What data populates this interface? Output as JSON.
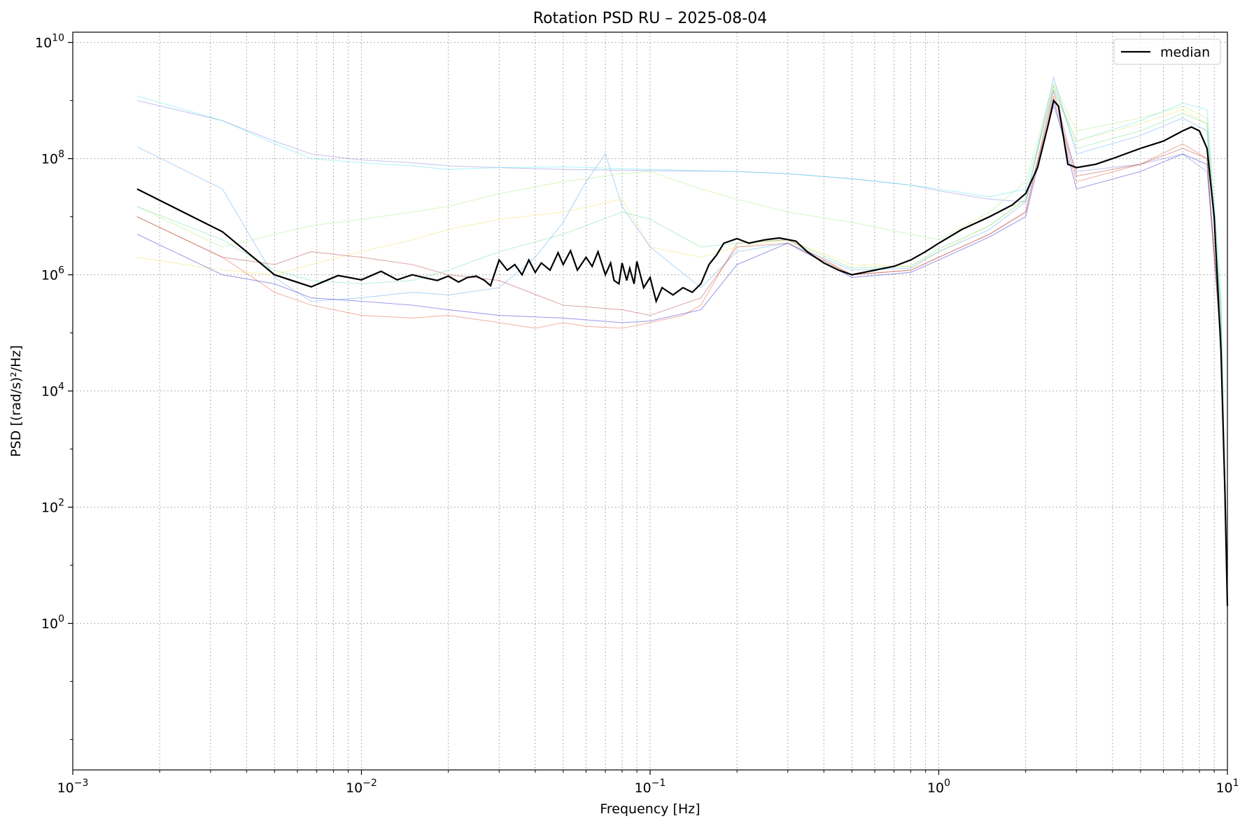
{
  "chart_data": {
    "type": "line",
    "title": "Rotation PSD RU – 2025-08-04",
    "xlabel": "Frequency [Hz]",
    "ylabel": "PSD [(rad/s)²/Hz]",
    "xscale": "log",
    "yscale": "log",
    "xlim": [
      0.001,
      10
    ],
    "ylim": [
      0.003,
      15000000000
    ],
    "grid": true,
    "legend": {
      "position": "top-right",
      "entries": [
        "median"
      ]
    },
    "x_ticks": [
      {
        "value": 0.001,
        "base": "10",
        "exp": "−3"
      },
      {
        "value": 0.01,
        "base": "10",
        "exp": "−2"
      },
      {
        "value": 0.1,
        "base": "10",
        "exp": "−1"
      },
      {
        "value": 1,
        "base": "10",
        "exp": "0"
      },
      {
        "value": 10,
        "base": "10",
        "exp": "1"
      }
    ],
    "y_ticks": [
      {
        "value": 1,
        "base": "10",
        "exp": "0"
      },
      {
        "value": 100,
        "base": "10",
        "exp": "2"
      },
      {
        "value": 10000,
        "base": "10",
        "exp": "4"
      },
      {
        "value": 1000000,
        "base": "10",
        "exp": "6"
      },
      {
        "value": 100000000,
        "base": "10",
        "exp": "8"
      },
      {
        "value": 10000000000,
        "base": "10",
        "exp": "10"
      }
    ],
    "series": [
      {
        "name": "median",
        "color": "#000000",
        "x": [
          0.00167,
          0.0033,
          0.005,
          0.0067,
          0.0083,
          0.01,
          0.0117,
          0.0133,
          0.015,
          0.0167,
          0.0183,
          0.02,
          0.0217,
          0.0233,
          0.025,
          0.0267,
          0.028,
          0.03,
          0.032,
          0.034,
          0.036,
          0.038,
          0.04,
          0.042,
          0.045,
          0.048,
          0.05,
          0.053,
          0.056,
          0.06,
          0.063,
          0.066,
          0.07,
          0.073,
          0.075,
          0.078,
          0.08,
          0.083,
          0.085,
          0.088,
          0.09,
          0.095,
          0.1,
          0.105,
          0.11,
          0.12,
          0.13,
          0.14,
          0.15,
          0.16,
          0.17,
          0.18,
          0.2,
          0.22,
          0.25,
          0.28,
          0.32,
          0.35,
          0.4,
          0.45,
          0.5,
          0.55,
          0.6,
          0.7,
          0.8,
          0.9,
          1.0,
          1.2,
          1.5,
          1.8,
          2.0,
          2.2,
          2.4,
          2.5,
          2.6,
          2.7,
          2.8,
          3.0,
          3.5,
          4.0,
          5.0,
          6.0,
          7.0,
          7.5,
          8.0,
          8.5,
          9.0,
          9.5,
          9.8,
          10.0
        ],
        "y": [
          30000000,
          5500000,
          1000000,
          620000,
          970000,
          820000,
          1150000,
          820000,
          1000000,
          880000,
          800000,
          950000,
          750000,
          900000,
          950000,
          800000,
          650000,
          1800000,
          1200000,
          1500000,
          1000000,
          1800000,
          1100000,
          1600000,
          1200000,
          2400000,
          1500000,
          2600000,
          1200000,
          2000000,
          1400000,
          2500000,
          1000000,
          1600000,
          800000,
          700000,
          1600000,
          800000,
          1300000,
          700000,
          1700000,
          600000,
          900000,
          350000,
          600000,
          450000,
          600000,
          500000,
          700000,
          1500000,
          2200000,
          3500000,
          4200000,
          3500000,
          4000000,
          4300000,
          3800000,
          2500000,
          1600000,
          1200000,
          1000000,
          1100000,
          1200000,
          1400000,
          1800000,
          2500000,
          3500000,
          6000000,
          10000000,
          16000000,
          25000000,
          70000000,
          400000000,
          1000000000,
          800000000,
          250000000,
          80000000,
          70000000,
          80000000,
          100000000,
          150000000,
          200000000,
          300000000,
          350000000,
          300000000,
          150000000,
          10000000,
          50000,
          200,
          2
        ]
      },
      {
        "name": "",
        "color": "#7f7fdd",
        "x": [
          0.00167,
          0.0033,
          0.005,
          0.0067,
          0.01,
          0.015,
          0.02,
          0.03,
          0.05,
          0.1,
          0.2,
          0.3,
          0.5,
          0.8,
          1.0,
          1.5,
          2.0,
          2.5,
          3.0,
          5.0,
          7.0,
          8.5,
          9.5,
          10.0
        ],
        "y": [
          1000000000,
          450000000,
          200000000,
          120000000,
          95000000,
          85000000,
          75000000,
          70000000,
          65000000,
          62000000,
          60000000,
          55000000,
          45000000,
          35000000,
          28000000,
          20000000,
          18000000,
          800000000,
          60000000,
          80000000,
          120000000,
          60000000,
          100000,
          2
        ]
      },
      {
        "name": "",
        "color": "#4fe6f0",
        "x": [
          0.00167,
          0.0033,
          0.005,
          0.0067,
          0.01,
          0.015,
          0.02,
          0.03,
          0.05,
          0.1,
          0.2,
          0.3,
          0.5,
          0.8,
          1.0,
          1.5,
          2.0,
          2.5,
          3.0,
          5.0,
          7.0,
          8.5,
          9.5,
          10.0
        ],
        "y": [
          1200000000,
          450000000,
          180000000,
          100000000,
          85000000,
          75000000,
          65000000,
          70000000,
          72000000,
          65000000,
          60000000,
          55000000,
          45000000,
          35000000,
          30000000,
          22000000,
          30000000,
          1500000000,
          200000000,
          450000000,
          900000000,
          700000000,
          500000,
          2
        ]
      },
      {
        "name": "",
        "color": "#a8f07c",
        "x": [
          0.00167,
          0.0033,
          0.005,
          0.0067,
          0.01,
          0.015,
          0.02,
          0.03,
          0.05,
          0.08,
          0.1,
          0.15,
          0.2,
          0.3,
          0.5,
          0.8,
          1.0,
          1.5,
          2.0,
          2.5,
          3.0,
          5.0,
          7.0,
          8.5,
          9.5,
          10.0
        ],
        "y": [
          15000000,
          3000000,
          5000000,
          7000000,
          9000000,
          12000000,
          15000000,
          25000000,
          40000000,
          55000000,
          60000000,
          30000000,
          20000000,
          12000000,
          8000000,
          5000000,
          4000000,
          12000000,
          40000000,
          2000000000,
          300000000,
          500000000,
          800000000,
          500000000,
          300000,
          2
        ]
      },
      {
        "name": "",
        "color": "#f5e15a",
        "x": [
          0.00167,
          0.0033,
          0.005,
          0.0067,
          0.01,
          0.015,
          0.02,
          0.03,
          0.05,
          0.08,
          0.1,
          0.15,
          0.2,
          0.3,
          0.5,
          0.8,
          1.0,
          1.5,
          2.0,
          2.5,
          3.0,
          5.0,
          7.0,
          8.5,
          9.5,
          10.0
        ],
        "y": [
          2000000,
          1200000,
          1000000,
          1500000,
          2500000,
          4000000,
          6000000,
          9000000,
          12000000,
          20000000,
          3000000,
          2000000,
          3000000,
          4000000,
          1500000,
          1400000,
          2500000,
          7000000,
          20000000,
          1800000000,
          200000000,
          400000000,
          700000000,
          400000000,
          200000,
          2
        ]
      },
      {
        "name": "",
        "color": "#5aa8f2",
        "x": [
          0.00167,
          0.0033,
          0.005,
          0.0067,
          0.01,
          0.015,
          0.02,
          0.03,
          0.04,
          0.05,
          0.06,
          0.07,
          0.08,
          0.1,
          0.15,
          0.2,
          0.3,
          0.5,
          0.8,
          1.0,
          1.5,
          2.0,
          2.5,
          3.0,
          5.0,
          7.0,
          8.5,
          9.5,
          10.0
        ],
        "y": [
          160000000,
          30000000,
          900000,
          350000,
          400000,
          500000,
          450000,
          600000,
          2000000,
          8000000,
          40000000,
          120000000,
          15000000,
          3000000,
          600000,
          2500000,
          3500000,
          1200000,
          1300000,
          2500000,
          6000000,
          18000000,
          2500000000,
          120000000,
          250000000,
          500000000,
          300000000,
          200000,
          2
        ]
      },
      {
        "name": "",
        "color": "#e55a33",
        "x": [
          0.00167,
          0.0033,
          0.005,
          0.0067,
          0.01,
          0.015,
          0.02,
          0.03,
          0.04,
          0.05,
          0.06,
          0.08,
          0.1,
          0.13,
          0.15,
          0.2,
          0.3,
          0.5,
          0.8,
          1.0,
          1.5,
          2.0,
          2.5,
          3.0,
          5.0,
          7.0,
          8.5,
          9.5,
          10.0
        ],
        "y": [
          10000000,
          2000000,
          500000,
          300000,
          200000,
          180000,
          200000,
          150000,
          120000,
          150000,
          130000,
          120000,
          150000,
          200000,
          300000,
          3500000,
          4000000,
          1000000,
          1200000,
          2000000,
          5000000,
          12000000,
          1200000000,
          40000000,
          80000000,
          180000000,
          100000000,
          80000,
          2
        ]
      },
      {
        "name": "",
        "color": "#2b2bd6",
        "x": [
          0.00167,
          0.0033,
          0.005,
          0.0067,
          0.01,
          0.015,
          0.02,
          0.03,
          0.05,
          0.08,
          0.1,
          0.15,
          0.2,
          0.3,
          0.5,
          0.8,
          1.0,
          1.5,
          2.0,
          2.5,
          3.0,
          5.0,
          7.0,
          8.5,
          9.5,
          10.0
        ],
        "y": [
          5000000,
          1000000,
          700000,
          400000,
          350000,
          300000,
          250000,
          200000,
          180000,
          150000,
          160000,
          250000,
          1500000,
          3500000,
          900000,
          1100000,
          1800000,
          4500000,
          10000000,
          1000000000,
          30000000,
          60000000,
          120000000,
          80000000,
          60000,
          2
        ]
      },
      {
        "name": "",
        "color": "#b44545",
        "x": [
          0.00167,
          0.0033,
          0.005,
          0.0067,
          0.01,
          0.015,
          0.02,
          0.03,
          0.05,
          0.08,
          0.1,
          0.15,
          0.2,
          0.3,
          0.5,
          0.8,
          1.0,
          1.5,
          2.0,
          2.5,
          3.0,
          5.0,
          7.0,
          8.5,
          9.5,
          10.0
        ],
        "y": [
          10000000,
          2000000,
          1500000,
          2500000,
          2000000,
          1500000,
          1000000,
          800000,
          300000,
          250000,
          200000,
          400000,
          3000000,
          3500000,
          1000000,
          1200000,
          2000000,
          5000000,
          12000000,
          1500000000,
          50000000,
          80000000,
          150000000,
          100000000,
          60000,
          2
        ]
      },
      {
        "name": "",
        "color": "#6de09a",
        "x": [
          0.00167,
          0.0033,
          0.005,
          0.0067,
          0.01,
          0.015,
          0.02,
          0.03,
          0.05,
          0.08,
          0.1,
          0.15,
          0.2,
          0.3,
          0.5,
          0.8,
          1.0,
          1.5,
          2.0,
          2.5,
          3.0,
          5.0,
          7.0,
          8.5,
          9.5,
          10.0
        ],
        "y": [
          15000000,
          4000000,
          1200000,
          800000,
          700000,
          800000,
          1200000,
          2500000,
          5000000,
          12000000,
          9000000,
          3000000,
          3500000,
          4000000,
          1300000,
          1400000,
          2800000,
          7000000,
          20000000,
          1800000000,
          150000000,
          300000000,
          600000000,
          400000000,
          250000,
          2
        ]
      }
    ]
  }
}
